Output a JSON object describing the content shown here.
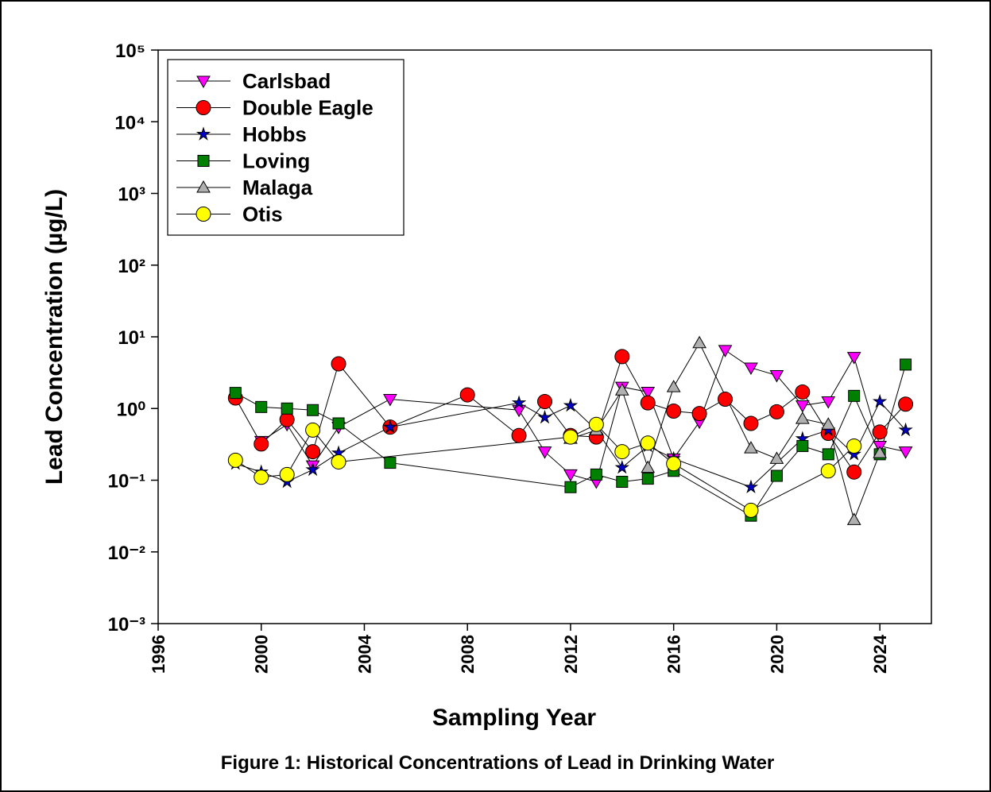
{
  "chart_data": {
    "type": "line",
    "title": "Figure 1: Historical Concentrations of Lead in Drinking Water",
    "x_label": "Sampling Year",
    "y_label": "Lead Concentration (µg/L)",
    "log_y": true,
    "legend": "upper left",
    "xlim": [
      1996,
      2026
    ],
    "xticks": [
      1996,
      2000,
      2004,
      2008,
      2012,
      2016,
      2020,
      2024
    ],
    "ylim": [
      0.001,
      100000
    ],
    "yticks": [
      {
        "value": 0.001,
        "label": "10⁻³"
      },
      {
        "value": 0.01,
        "label": "10⁻²"
      },
      {
        "value": 0.1,
        "label": "10⁻¹"
      },
      {
        "value": 1,
        "label": "10⁰"
      },
      {
        "value": 10,
        "label": "10¹"
      },
      {
        "value": 100,
        "label": "10²"
      },
      {
        "value": 1000,
        "label": "10³"
      },
      {
        "value": 10000,
        "label": "10⁴"
      },
      {
        "value": 100000,
        "label": "10⁵"
      }
    ],
    "series": [
      {
        "name": "Carlsbad",
        "color": "#ff00ff",
        "marker": "triangle-down",
        "x": [
          2000,
          2001,
          2002,
          2003,
          2005,
          2010,
          2011,
          2012,
          2013,
          2014,
          2015,
          2016,
          2017,
          2018,
          2019,
          2020,
          2021,
          2022,
          2023,
          2024,
          2025
        ],
        "values": [
          0.35,
          0.6,
          0.16,
          0.55,
          1.35,
          0.95,
          0.25,
          0.12,
          0.095,
          2.0,
          1.7,
          0.2,
          0.65,
          6.5,
          3.7,
          2.9,
          1.1,
          1.25,
          5.2,
          0.3,
          0.25
        ]
      },
      {
        "name": "Double Eagle",
        "color": "#ff0000",
        "marker": "circle",
        "x": [
          1999,
          2000,
          2001,
          2002,
          2003,
          2005,
          2008,
          2010,
          2011,
          2012,
          2013,
          2014,
          2015,
          2016,
          2017,
          2018,
          2019,
          2020,
          2021,
          2022,
          2023,
          2024,
          2025
        ],
        "values": [
          1.4,
          0.32,
          0.7,
          0.25,
          4.2,
          0.55,
          1.55,
          0.42,
          1.25,
          0.42,
          0.4,
          5.3,
          1.2,
          0.92,
          0.85,
          1.35,
          0.62,
          0.9,
          1.7,
          0.45,
          0.13,
          0.47,
          1.15
        ]
      },
      {
        "name": "Hobbs",
        "color": "#0000cc",
        "marker": "star",
        "x": [
          1999,
          2000,
          2001,
          2002,
          2003,
          2005,
          2010,
          2011,
          2012,
          2013,
          2014,
          2015,
          2016,
          2019,
          2021,
          2022,
          2023,
          2024,
          2025
        ],
        "values": [
          0.17,
          0.13,
          0.095,
          0.14,
          0.24,
          0.55,
          1.2,
          0.75,
          1.1,
          0.5,
          0.15,
          0.3,
          0.2,
          0.08,
          0.38,
          0.5,
          0.23,
          1.25,
          0.5
        ]
      },
      {
        "name": "Loving",
        "color": "#008000",
        "marker": "square",
        "x": [
          1999,
          2000,
          2001,
          2002,
          2003,
          2005,
          2012,
          2013,
          2014,
          2015,
          2016,
          2019,
          2020,
          2021,
          2022,
          2023,
          2024,
          2025
        ],
        "values": [
          1.65,
          1.05,
          1.0,
          0.95,
          0.62,
          0.175,
          0.08,
          0.12,
          0.095,
          0.105,
          0.135,
          0.032,
          0.115,
          0.3,
          0.23,
          1.5,
          0.23,
          4.1
        ]
      },
      {
        "name": "Malaga",
        "color": "#b0b0b0",
        "marker": "triangle-up",
        "x": [
          2012,
          2013,
          2014,
          2015,
          2016,
          2017,
          2019,
          2020,
          2021,
          2022,
          2023,
          2024
        ],
        "values": [
          0.38,
          0.5,
          1.8,
          0.15,
          2.0,
          8.2,
          0.28,
          0.2,
          0.72,
          0.6,
          0.028,
          0.24
        ]
      },
      {
        "name": "Otis",
        "color": "#ffff00",
        "marker": "circle",
        "x": [
          1999,
          2000,
          2001,
          2002,
          2003,
          2012,
          2013,
          2014,
          2015,
          2016,
          2019,
          2022,
          2023
        ],
        "values": [
          0.19,
          0.11,
          0.12,
          0.5,
          0.18,
          0.4,
          0.6,
          0.25,
          0.33,
          0.17,
          0.038,
          0.135,
          0.3
        ]
      }
    ]
  }
}
